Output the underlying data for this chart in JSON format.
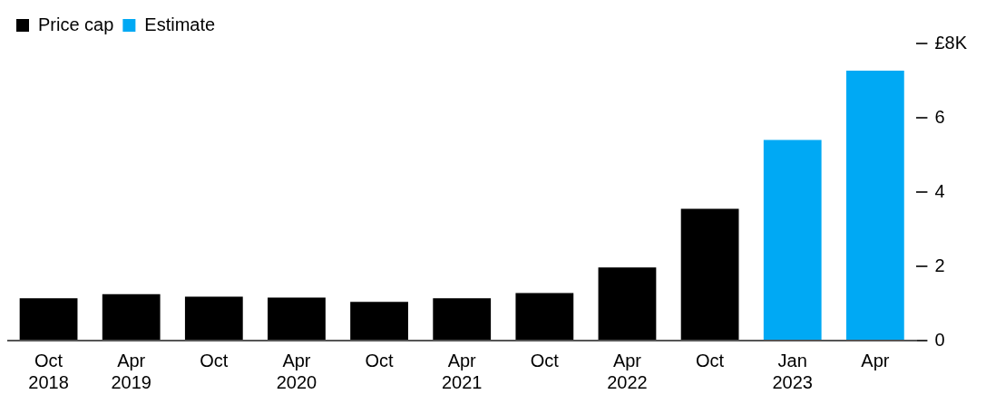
{
  "chart_data": {
    "type": "bar",
    "categories": [
      "Oct\n2018",
      "Apr\n2019",
      "Oct",
      "Apr\n2020",
      "Oct",
      "Apr\n2021",
      "Oct",
      "Apr\n2022",
      "Oct",
      "Jan\n2023",
      "Apr"
    ],
    "series": [
      {
        "name": "Price cap",
        "color": "#000000",
        "values": [
          1.14,
          1.25,
          1.18,
          1.16,
          1.04,
          1.14,
          1.28,
          1.97,
          3.55,
          null,
          null
        ]
      },
      {
        "name": "Estimate",
        "color": "#00a9f4",
        "values": [
          null,
          null,
          null,
          null,
          null,
          null,
          null,
          null,
          null,
          5.4,
          7.27
        ]
      }
    ],
    "stacked": true,
    "ylim": [
      0,
      8
    ],
    "yticks": [
      0,
      2,
      4,
      6,
      {
        "value": 8,
        "label": "£8K"
      }
    ],
    "grid": false,
    "legend": "top left"
  }
}
